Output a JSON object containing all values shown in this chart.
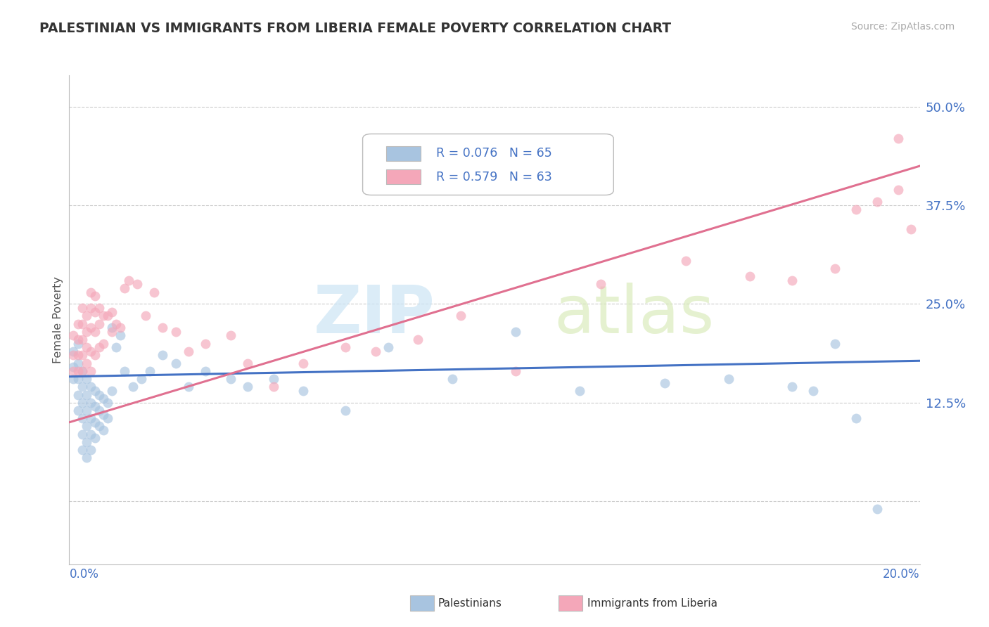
{
  "title": "PALESTINIAN VS IMMIGRANTS FROM LIBERIA FEMALE POVERTY CORRELATION CHART",
  "source": "Source: ZipAtlas.com",
  "ylabel": "Female Poverty",
  "xmin": 0.0,
  "xmax": 0.2,
  "ymin": -0.08,
  "ymax": 0.54,
  "ytick_vals": [
    0.0,
    0.125,
    0.25,
    0.375,
    0.5
  ],
  "ytick_labels": [
    "",
    "12.5%",
    "25.0%",
    "37.5%",
    "50.0%"
  ],
  "watermark_zip": "ZIP",
  "watermark_atlas": "atlas",
  "pal_color": "#a8c4e0",
  "lib_color": "#f4a7b9",
  "pal_line_color": "#4472c4",
  "lib_line_color": "#e07090",
  "legend_text_color": "#4472c4",
  "legend_r1": "R = 0.076",
  "legend_n1": "N = 65",
  "legend_r2": "R = 0.579",
  "legend_n2": "N = 63",
  "pal_trend": [
    0.0,
    0.158,
    0.2,
    0.178
  ],
  "lib_trend": [
    0.0,
    0.1,
    0.2,
    0.425
  ],
  "palestinians_x": [
    0.001,
    0.001,
    0.001,
    0.002,
    0.002,
    0.002,
    0.002,
    0.002,
    0.003,
    0.003,
    0.003,
    0.003,
    0.003,
    0.003,
    0.004,
    0.004,
    0.004,
    0.004,
    0.004,
    0.004,
    0.005,
    0.005,
    0.005,
    0.005,
    0.005,
    0.006,
    0.006,
    0.006,
    0.006,
    0.007,
    0.007,
    0.007,
    0.008,
    0.008,
    0.008,
    0.009,
    0.009,
    0.01,
    0.01,
    0.011,
    0.012,
    0.013,
    0.015,
    0.017,
    0.019,
    0.022,
    0.025,
    0.028,
    0.032,
    0.038,
    0.042,
    0.048,
    0.055,
    0.065,
    0.075,
    0.09,
    0.105,
    0.12,
    0.14,
    0.155,
    0.17,
    0.175,
    0.18,
    0.185,
    0.19
  ],
  "palestinians_y": [
    0.19,
    0.17,
    0.155,
    0.2,
    0.175,
    0.155,
    0.135,
    0.115,
    0.165,
    0.145,
    0.125,
    0.105,
    0.085,
    0.065,
    0.155,
    0.135,
    0.115,
    0.095,
    0.075,
    0.055,
    0.145,
    0.125,
    0.105,
    0.085,
    0.065,
    0.14,
    0.12,
    0.1,
    0.08,
    0.135,
    0.115,
    0.095,
    0.13,
    0.11,
    0.09,
    0.125,
    0.105,
    0.22,
    0.14,
    0.195,
    0.21,
    0.165,
    0.145,
    0.155,
    0.165,
    0.185,
    0.175,
    0.145,
    0.165,
    0.155,
    0.145,
    0.155,
    0.14,
    0.115,
    0.195,
    0.155,
    0.215,
    0.14,
    0.15,
    0.155,
    0.145,
    0.14,
    0.2,
    0.105,
    -0.01
  ],
  "liberia_x": [
    0.001,
    0.001,
    0.001,
    0.002,
    0.002,
    0.002,
    0.002,
    0.003,
    0.003,
    0.003,
    0.003,
    0.003,
    0.004,
    0.004,
    0.004,
    0.004,
    0.005,
    0.005,
    0.005,
    0.005,
    0.005,
    0.006,
    0.006,
    0.006,
    0.006,
    0.007,
    0.007,
    0.007,
    0.008,
    0.008,
    0.009,
    0.01,
    0.01,
    0.011,
    0.012,
    0.013,
    0.014,
    0.016,
    0.018,
    0.02,
    0.022,
    0.025,
    0.028,
    0.032,
    0.038,
    0.042,
    0.048,
    0.055,
    0.065,
    0.072,
    0.082,
    0.092,
    0.105,
    0.125,
    0.145,
    0.16,
    0.17,
    0.18,
    0.185,
    0.19,
    0.195,
    0.195,
    0.198
  ],
  "liberia_y": [
    0.21,
    0.185,
    0.165,
    0.225,
    0.205,
    0.185,
    0.165,
    0.245,
    0.225,
    0.205,
    0.185,
    0.165,
    0.235,
    0.215,
    0.195,
    0.175,
    0.265,
    0.245,
    0.22,
    0.19,
    0.165,
    0.26,
    0.24,
    0.215,
    0.185,
    0.245,
    0.225,
    0.195,
    0.235,
    0.2,
    0.235,
    0.24,
    0.215,
    0.225,
    0.22,
    0.27,
    0.28,
    0.275,
    0.235,
    0.265,
    0.22,
    0.215,
    0.19,
    0.2,
    0.21,
    0.175,
    0.145,
    0.175,
    0.195,
    0.19,
    0.205,
    0.235,
    0.165,
    0.275,
    0.305,
    0.285,
    0.28,
    0.295,
    0.37,
    0.38,
    0.395,
    0.46,
    0.345
  ]
}
